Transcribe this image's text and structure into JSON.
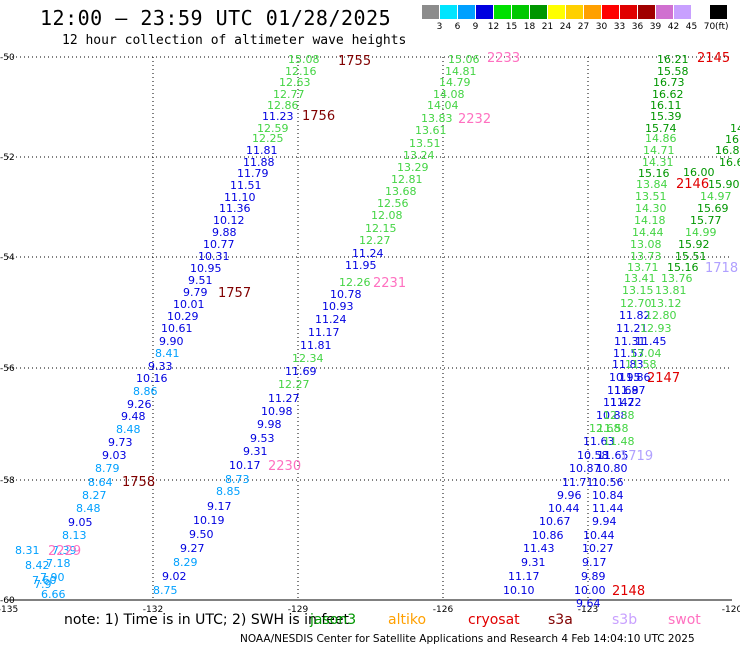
{
  "header": {
    "title": "12:00 – 23:59 UTC 01/28/2025",
    "subtitle": "12 hour collection of altimeter wave heights"
  },
  "legend": {
    "unit": "(ft)",
    "bins": [
      {
        "label": "3",
        "color": "#8c8c8c"
      },
      {
        "label": "6",
        "color": "#00e5ff"
      },
      {
        "label": "9",
        "color": "#00a0ff"
      },
      {
        "label": "12",
        "color": "#0000e0"
      },
      {
        "label": "15",
        "color": "#00e000"
      },
      {
        "label": "18",
        "color": "#00c800"
      },
      {
        "label": "21",
        "color": "#009600"
      },
      {
        "label": "24",
        "color": "#ffff00"
      },
      {
        "label": "27",
        "color": "#ffd000"
      },
      {
        "label": "30",
        "color": "#ffa000"
      },
      {
        "label": "33",
        "color": "#ff0000"
      },
      {
        "label": "36",
        "color": "#e00000"
      },
      {
        "label": "39",
        "color": "#a00000"
      },
      {
        "label": "42",
        "color": "#d070d0"
      },
      {
        "label": "45",
        "color": "#c8a0ff"
      },
      {
        "label": "70",
        "color": "#ffffff"
      },
      {
        "label": "",
        "color": "#000000"
      }
    ]
  },
  "axes": {
    "lon_ticks": [
      "-135",
      "-132",
      "-129",
      "-126",
      "-123",
      "-120"
    ],
    "lat_ticks": [
      "-50",
      "-52",
      "-54",
      "-56",
      "-58",
      "-60"
    ]
  },
  "colors": {
    "c3": "#00a0ff",
    "c1": "#0000e0",
    "c2": "#44d444",
    "dg": "#009600",
    "red": "#e00000",
    "dred": "#800000",
    "pink": "#ff70c0",
    "lav": "#b0a0ff"
  },
  "tracks": [
    {
      "pass": "1755",
      "pass_color": "dred",
      "pass_pos": [
        338,
        60
      ],
      "labels": [
        [
          "15.08",
          "c2",
          288,
          59
        ],
        [
          "12.16",
          "c2",
          285,
          71
        ],
        [
          "12.63",
          "c2",
          279,
          82
        ],
        [
          "12.77",
          "c2",
          273,
          94
        ],
        [
          "12.86",
          "c2",
          267,
          105
        ],
        [
          "11.23",
          "c1",
          262,
          116
        ],
        [
          "12.59",
          "c2",
          257,
          128
        ],
        [
          "12.25",
          "c2",
          252,
          138
        ],
        [
          "11.81",
          "c1",
          246,
          150
        ],
        [
          "11.88",
          "c1",
          243,
          162
        ],
        [
          "11.79",
          "c1",
          237,
          173
        ],
        [
          "11.51",
          "c1",
          230,
          185
        ],
        [
          "11.10",
          "c1",
          224,
          197
        ],
        [
          "11.36",
          "c1",
          219,
          208
        ],
        [
          "10.12",
          "c1",
          213,
          220
        ],
        [
          "9.88",
          "c1",
          212,
          232
        ],
        [
          "10.77",
          "c1",
          203,
          244
        ],
        [
          "10.31",
          "c1",
          198,
          256
        ],
        [
          "10.95",
          "c1",
          190,
          268
        ],
        [
          "9.51",
          "c1",
          188,
          280
        ],
        [
          "9.79",
          "c1",
          183,
          292
        ],
        [
          "10.01",
          "c1",
          173,
          304
        ],
        [
          "10.29",
          "c1",
          167,
          316
        ],
        [
          "10.61",
          "c1",
          161,
          328
        ],
        [
          "9.90",
          "c1",
          159,
          341
        ],
        [
          "8.41",
          "c3",
          155,
          353
        ],
        [
          "9.33",
          "c1",
          148,
          366
        ],
        [
          "10.16",
          "c1",
          136,
          378
        ],
        [
          "8.86",
          "c3",
          133,
          391
        ],
        [
          "9.26",
          "c1",
          127,
          404
        ],
        [
          "9.48",
          "c1",
          121,
          416
        ],
        [
          "8.48",
          "c3",
          116,
          429
        ],
        [
          "9.73",
          "c1",
          108,
          442
        ],
        [
          "9.03",
          "c1",
          102,
          455
        ],
        [
          "8.79",
          "c3",
          95,
          468
        ],
        [
          "8.64",
          "c3",
          88,
          482
        ],
        [
          "8.27",
          "c3",
          82,
          495
        ],
        [
          "8.48",
          "c3",
          76,
          508
        ],
        [
          "9.05",
          "c1",
          68,
          522
        ],
        [
          "8.13",
          "c3",
          62,
          535
        ],
        [
          "7.39",
          "c3",
          52,
          550
        ],
        [
          "7.18",
          "c3",
          46,
          563
        ],
        [
          "7.90",
          "c3",
          40,
          577
        ],
        [
          "7.9",
          "c3",
          34,
          584
        ],
        [
          "6.66",
          "c3",
          41,
          594
        ]
      ]
    },
    {
      "pass": "1756",
      "pass_color": "dred",
      "pass_pos": [
        302,
        115
      ],
      "labels": []
    },
    {
      "pass": "1757",
      "pass_color": "dred",
      "pass_pos": [
        218,
        292
      ],
      "labels": []
    },
    {
      "pass": "1758",
      "pass_color": "dred",
      "pass_pos": [
        122,
        481
      ],
      "labels": [
        [
          "8.31",
          "c3",
          15,
          550
        ],
        [
          "8.42",
          "c3",
          25,
          565
        ],
        [
          "7.60",
          "c3",
          32,
          580
        ]
      ]
    },
    {
      "pass": "2233",
      "pass_color": "pink",
      "pass_pos": [
        487,
        57
      ],
      "labels": [
        [
          "15.06",
          "c2",
          448,
          59
        ],
        [
          "14.81",
          "c2",
          445,
          71
        ],
        [
          "14.79",
          "c2",
          439,
          82
        ],
        [
          "14.08",
          "c2",
          433,
          94
        ],
        [
          "14.04",
          "c2",
          427,
          105
        ],
        [
          "13.83",
          "c2",
          421,
          118
        ],
        [
          "13.61",
          "c2",
          415,
          130
        ],
        [
          "13.51",
          "c2",
          409,
          143
        ],
        [
          "13.24",
          "c2",
          403,
          155
        ],
        [
          "13.29",
          "c2",
          397,
          167
        ],
        [
          "12.81",
          "c2",
          391,
          179
        ],
        [
          "13.68",
          "c2",
          385,
          191
        ],
        [
          "12.56",
          "c2",
          377,
          203
        ],
        [
          "12.08",
          "c2",
          371,
          215
        ],
        [
          "12.15",
          "c2",
          365,
          228
        ],
        [
          "12.27",
          "c2",
          359,
          240
        ],
        [
          "11.24",
          "c1",
          352,
          253
        ],
        [
          "11.95",
          "c1",
          345,
          265
        ],
        [
          "12.26",
          "c2",
          339,
          282
        ],
        [
          "10.78",
          "c1",
          330,
          294
        ],
        [
          "10.93",
          "c1",
          322,
          306
        ],
        [
          "11.24",
          "c1",
          315,
          319
        ],
        [
          "11.17",
          "c1",
          308,
          332
        ],
        [
          "11.81",
          "c1",
          300,
          345
        ],
        [
          "12.34",
          "c2",
          292,
          358
        ],
        [
          "11.69",
          "c1",
          285,
          371
        ],
        [
          "12.27",
          "c2",
          278,
          384
        ],
        [
          "11.27",
          "c1",
          268,
          398
        ],
        [
          "10.98",
          "c1",
          261,
          411
        ],
        [
          "9.98",
          "c1",
          257,
          424
        ],
        [
          "9.53",
          "c1",
          250,
          438
        ],
        [
          "9.31",
          "c1",
          243,
          451
        ],
        [
          "10.17",
          "c1",
          229,
          465
        ],
        [
          "8.73",
          "c3",
          225,
          479
        ],
        [
          "8.85",
          "c3",
          216,
          491
        ],
        [
          "9.17",
          "c1",
          207,
          506
        ],
        [
          "10.19",
          "c1",
          193,
          520
        ],
        [
          "9.50",
          "c1",
          189,
          534
        ],
        [
          "9.27",
          "c1",
          180,
          548
        ],
        [
          "8.29",
          "c3",
          173,
          562
        ],
        [
          "9.02",
          "c1",
          162,
          576
        ],
        [
          "8.75",
          "c3",
          153,
          590
        ]
      ]
    },
    {
      "pass": "2232",
      "pass_color": "pink",
      "pass_pos": [
        458,
        118
      ],
      "labels": []
    },
    {
      "pass": "2231",
      "pass_color": "pink",
      "pass_pos": [
        373,
        282
      ],
      "labels": []
    },
    {
      "pass": "2230",
      "pass_color": "pink",
      "pass_pos": [
        268,
        465
      ],
      "labels": []
    },
    {
      "pass": "2229",
      "pass_color": "pink",
      "pass_pos": [
        48,
        550
      ],
      "labels": []
    },
    {
      "pass": "2145",
      "pass_color": "red",
      "pass_pos": [
        697,
        57
      ],
      "labels": [
        [
          "16.21",
          "dg",
          657,
          59
        ],
        [
          "15.58",
          "dg",
          657,
          71
        ],
        [
          "16.73",
          "dg",
          653,
          82
        ],
        [
          "16.62",
          "dg",
          652,
          94
        ],
        [
          "16.11",
          "dg",
          650,
          105
        ],
        [
          "15.39",
          "dg",
          650,
          116
        ],
        [
          "15.74",
          "dg",
          645,
          128
        ],
        [
          "14.86",
          "c2",
          645,
          138
        ],
        [
          "14.71",
          "c2",
          643,
          150
        ],
        [
          "14.31",
          "c2",
          642,
          162
        ],
        [
          "15.16",
          "dg",
          638,
          173
        ],
        [
          "13.84",
          "c2",
          636,
          184
        ],
        [
          "13.51",
          "c2",
          635,
          196
        ],
        [
          "14.30",
          "c2",
          635,
          208
        ],
        [
          "14.18",
          "c2",
          634,
          220
        ],
        [
          "14.44",
          "c2",
          632,
          232
        ],
        [
          "13.08",
          "c2",
          630,
          244
        ],
        [
          "13.73",
          "c2",
          630,
          256
        ],
        [
          "13.71",
          "c2",
          627,
          267
        ],
        [
          "13.41",
          "c2",
          624,
          278
        ],
        [
          "13.15",
          "c2",
          622,
          290
        ],
        [
          "12.70",
          "c2",
          620,
          303
        ],
        [
          "11.82",
          "c1",
          619,
          315
        ],
        [
          "11.21",
          "c1",
          616,
          328
        ],
        [
          "11.31",
          "c1",
          614,
          341
        ],
        [
          "11.57",
          "c1",
          613,
          353
        ],
        [
          "11.83",
          "c1",
          612,
          364
        ],
        [
          "10.95",
          "c1",
          609,
          377
        ],
        [
          "11.69",
          "c1",
          607,
          390
        ],
        [
          "11.42",
          "c1",
          603,
          402
        ],
        [
          "10.88",
          "c1",
          596,
          415
        ],
        [
          "12.68",
          "c2",
          589,
          428
        ],
        [
          "11.63",
          "c1",
          583,
          441
        ],
        [
          "10.58",
          "c1",
          577,
          455
        ],
        [
          "10.87",
          "c1",
          569,
          468
        ],
        [
          "11.71",
          "c1",
          562,
          482
        ],
        [
          "9.96",
          "c1",
          557,
          495
        ],
        [
          "10.44",
          "c1",
          548,
          508
        ],
        [
          "10.67",
          "c1",
          539,
          521
        ],
        [
          "10.86",
          "c1",
          532,
          535
        ],
        [
          "11.43",
          "c1",
          523,
          548
        ],
        [
          "9.31",
          "c1",
          521,
          562
        ],
        [
          "11.17",
          "c1",
          508,
          576
        ],
        [
          "10.10",
          "c1",
          503,
          590
        ]
      ]
    },
    {
      "pass": "2146",
      "pass_color": "red",
      "pass_pos": [
        676,
        183
      ],
      "labels": [
        [
          "16.00",
          "dg",
          683,
          172
        ],
        [
          "15.90",
          "dg",
          708,
          184
        ],
        [
          "14.97",
          "c2",
          700,
          196
        ],
        [
          "15.69",
          "dg",
          697,
          208
        ],
        [
          "15.77",
          "dg",
          690,
          220
        ],
        [
          "14.99",
          "c2",
          685,
          232
        ],
        [
          "15.92",
          "dg",
          678,
          244
        ],
        [
          "15.51",
          "dg",
          675,
          256
        ],
        [
          "15.16",
          "dg",
          667,
          267
        ],
        [
          "13.76",
          "c2",
          661,
          278
        ],
        [
          "13.81",
          "c2",
          655,
          290
        ],
        [
          "13.12",
          "c2",
          650,
          303
        ],
        [
          "12.80",
          "c2",
          645,
          315
        ],
        [
          "12.93",
          "c2",
          640,
          328
        ],
        [
          "11.45",
          "c1",
          635,
          341
        ],
        [
          "13.04",
          "c2",
          630,
          353
        ],
        [
          "11.58",
          "c2",
          625,
          364
        ],
        [
          "11.86",
          "c1",
          619,
          377
        ],
        [
          "11.87",
          "c1",
          614,
          390
        ],
        [
          "11.72",
          "c1",
          610,
          402
        ],
        [
          "12.38",
          "c2",
          603,
          415
        ],
        [
          "11.58",
          "c2",
          597,
          428
        ],
        [
          "11.48",
          "c2",
          603,
          441
        ],
        [
          "11.65",
          "c1",
          597,
          455
        ],
        [
          "10.80",
          "c1",
          596,
          468
        ],
        [
          "10.56",
          "c1",
          592,
          482
        ],
        [
          "10.84",
          "c1",
          592,
          495
        ],
        [
          "11.44",
          "c1",
          592,
          508
        ],
        [
          "9.94",
          "c1",
          592,
          521
        ],
        [
          "10.44",
          "c1",
          583,
          535
        ],
        [
          "10.27",
          "c1",
          582,
          548
        ],
        [
          "9.17",
          "c1",
          582,
          562
        ],
        [
          "9.89",
          "c1",
          581,
          576
        ],
        [
          "10.00",
          "c1",
          574,
          590
        ],
        [
          "9.64",
          "c1",
          576,
          603
        ]
      ]
    },
    {
      "pass": "2147",
      "pass_color": "red",
      "pass_pos": [
        647,
        377
      ],
      "labels": []
    },
    {
      "pass": "2148",
      "pass_color": "red",
      "pass_pos": [
        612,
        590
      ],
      "labels": []
    },
    {
      "pass": "1718",
      "pass_color": "lav",
      "pass_pos": [
        705,
        267
      ],
      "labels": [
        [
          "14",
          "dg",
          730,
          128
        ],
        [
          "16",
          "dg",
          725,
          139
        ],
        [
          "16.8",
          "dg",
          715,
          150
        ],
        [
          "16.6",
          "dg",
          719,
          162
        ]
      ]
    },
    {
      "pass": "1719",
      "pass_color": "lav",
      "pass_pos": [
        620,
        455
      ],
      "labels": []
    }
  ],
  "note": {
    "text": "note: 1) Time is in UTC; 2) SWH is in feet"
  },
  "satellites": [
    {
      "name": "jason3",
      "color": "#009600"
    },
    {
      "name": "altiko",
      "color": "#ffa000"
    },
    {
      "name": "cryosat",
      "color": "#e00000"
    },
    {
      "name": "s3a",
      "color": "#800000"
    },
    {
      "name": "s3b",
      "color": "#c8a0ff"
    },
    {
      "name": "swot",
      "color": "#ff70c0"
    }
  ],
  "credit": {
    "text": "NOAA/NESDIS Center for Satellite Applications and Research    4 Feb 14:04:10 UTC 2025"
  }
}
